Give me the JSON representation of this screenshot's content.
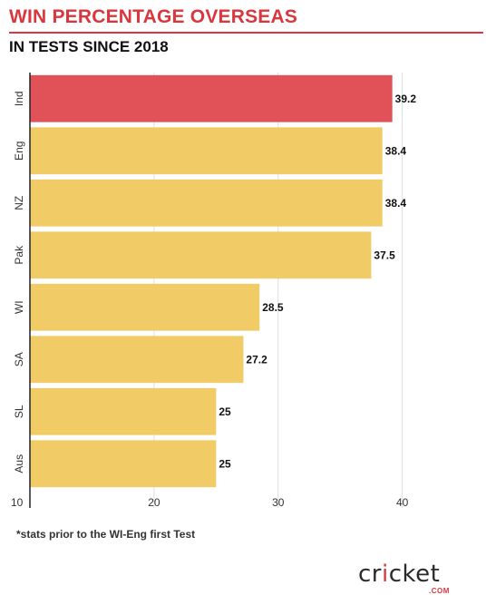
{
  "title": "WIN PERCENTAGE OVERSEAS",
  "subtitle": "IN TESTS SINCE 2018",
  "footnote": "*stats prior to the WI-Eng first Test",
  "logo": {
    "text": "cricket",
    "suffix": ".COM"
  },
  "colors": {
    "highlight": "#e05257",
    "default": "#f1cb66",
    "brand_red": "#d9363e",
    "grid": "#dddddd"
  },
  "chart_data": {
    "type": "bar",
    "orientation": "horizontal",
    "title": "WIN PERCENTAGE OVERSEAS",
    "subtitle": "IN TESTS SINCE 2018",
    "categories": [
      "Ind",
      "Eng",
      "NZ",
      "Pak",
      "WI",
      "SA",
      "SL",
      "Aus"
    ],
    "values": [
      39.2,
      38.4,
      38.4,
      37.5,
      28.5,
      27.2,
      25,
      25
    ],
    "highlight_index": 0,
    "xlim": [
      10,
      42
    ],
    "xticks": [
      10,
      20,
      30,
      40
    ],
    "grid": true,
    "xlabel": "",
    "ylabel": ""
  }
}
